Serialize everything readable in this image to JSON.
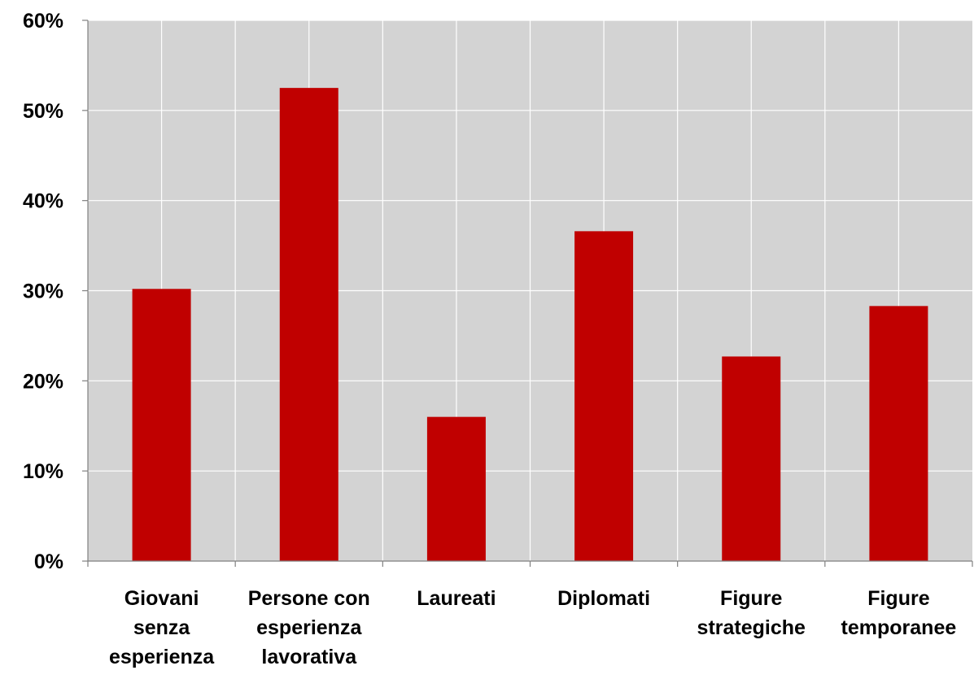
{
  "chart_data": {
    "type": "bar",
    "categories": [
      [
        "Giovani",
        "senza",
        "esperienza"
      ],
      [
        "Persone con",
        "esperienza",
        "lavorativa"
      ],
      [
        "Laureati"
      ],
      [
        "Diplomati"
      ],
      [
        "Figure",
        "strategiche"
      ],
      [
        "Figure",
        "temporanee"
      ]
    ],
    "values": [
      30.2,
      52.5,
      16.0,
      36.6,
      22.7,
      28.3
    ],
    "ylim": [
      0,
      60
    ],
    "yticks": [
      "0%",
      "10%",
      "20%",
      "30%",
      "40%",
      "50%",
      "60%"
    ],
    "grid": true,
    "colors": {
      "bar": "#C00000",
      "plot_bg": "#D3D3D3",
      "grid": "#FFFFFF",
      "axis": "#808080"
    }
  }
}
